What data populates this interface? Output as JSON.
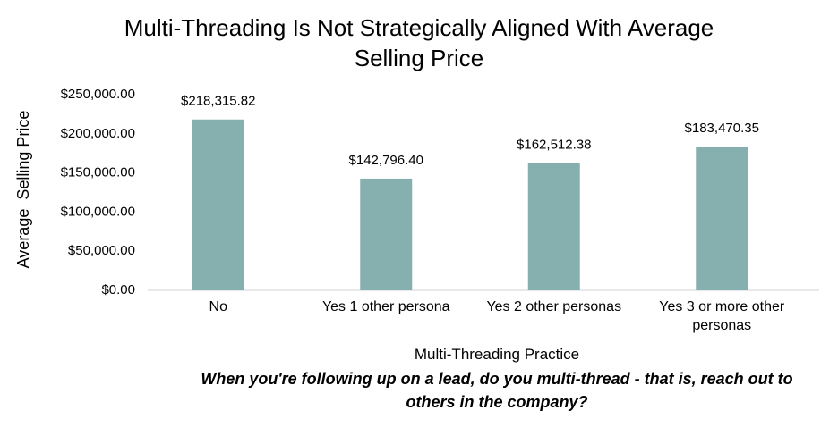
{
  "chart_data": {
    "type": "bar",
    "title": "Multi-Threading Is Not Strategically Aligned With Average Selling Price",
    "x_label": "Multi-Threading Practice",
    "y_label": "Average  Selling Price",
    "subtitle": "When you're following up on a lead, do you multi-thread - that is, reach out to others in the company?",
    "categories": [
      "No",
      "Yes 1 other persona",
      "Yes 2 other personas",
      "Yes 3 or more other personas"
    ],
    "values": [
      218315.82,
      142796.4,
      162512.38,
      183470.35
    ],
    "value_labels": [
      "$218,315.82",
      "$142,796.40",
      "$162,512.38",
      "$183,470.35"
    ],
    "color": "#86b0af",
    "ylim": [
      0,
      250000
    ],
    "yticks": [
      {
        "value": 0,
        "label": "$0.00"
      },
      {
        "value": 50000,
        "label": "$50,000.00"
      },
      {
        "value": 100000,
        "label": "$100,000.00"
      },
      {
        "value": 150000,
        "label": "$150,000.00"
      },
      {
        "value": 200000,
        "label": "$200,000.00"
      },
      {
        "value": 250000,
        "label": "$250,000.00"
      }
    ],
    "grid": false
  }
}
